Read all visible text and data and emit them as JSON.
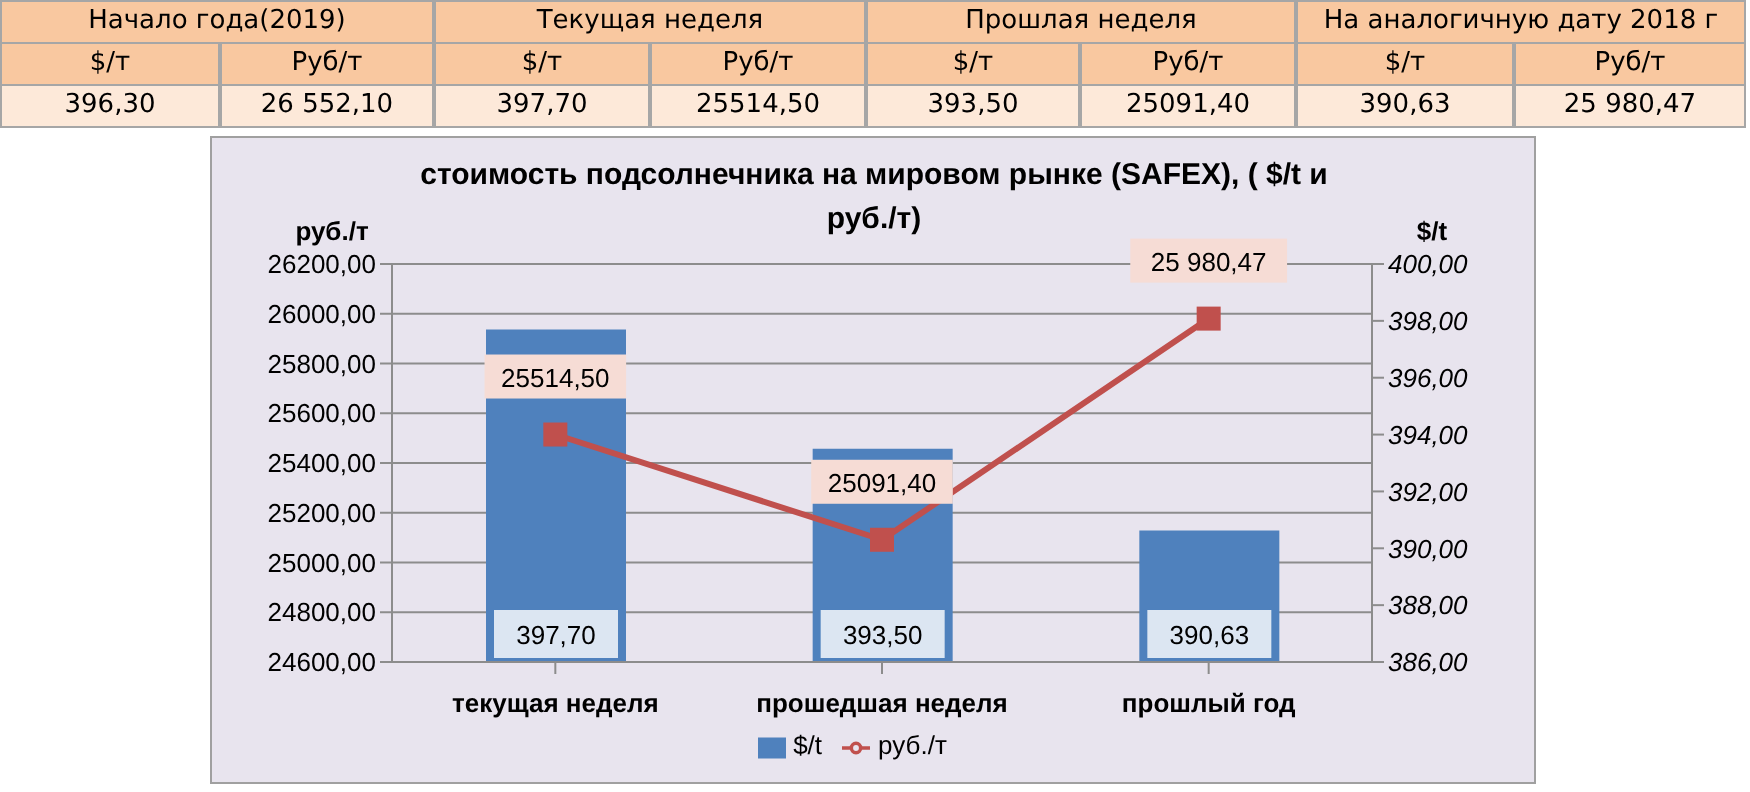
{
  "chart_data": {
    "type": "bar",
    "title": "стоимость подсолнечника на мировом рынке (SAFEX), ( $/t и руб./т)",
    "ylabel": "руб./т",
    "y2label": "$/t",
    "categories": [
      "текущая  неделя",
      "прошедшая неделя",
      "прошлый год"
    ],
    "series": [
      {
        "name": "$/t",
        "axis": "y2",
        "color": "#4f81bd",
        "values": [
          397.7,
          393.5,
          390.63
        ],
        "value_labels": [
          "397,70",
          "393,50",
          "390,63"
        ]
      },
      {
        "name": "руб./т",
        "type": "line",
        "axis": "y",
        "color": "#c0504d",
        "values": [
          25514.5,
          25091.4,
          25980.47
        ],
        "value_labels": [
          "25514,50",
          "25091,40",
          "25 980,47"
        ]
      }
    ],
    "ylim": [
      24600,
      26200
    ],
    "yticks": [
      {
        "value": 24600,
        "label": "24600,00"
      },
      {
        "value": 24800,
        "label": "24800,00"
      },
      {
        "value": 25000,
        "label": "25000,00"
      },
      {
        "value": 25200,
        "label": "25200,00"
      },
      {
        "value": 25400,
        "label": "25400,00"
      },
      {
        "value": 25600,
        "label": "25600,00"
      },
      {
        "value": 25800,
        "label": "25800,00"
      },
      {
        "value": 26000,
        "label": "26000,00"
      },
      {
        "value": 26200,
        "label": "26200,00"
      }
    ],
    "y2lim": [
      386,
      400
    ],
    "y2ticks": [
      {
        "value": 386,
        "label": "386,00"
      },
      {
        "value": 388,
        "label": "388,00"
      },
      {
        "value": 390,
        "label": "390,00"
      },
      {
        "value": 392,
        "label": "392,00"
      },
      {
        "value": 394,
        "label": "394,00"
      },
      {
        "value": 396,
        "label": "396,00"
      },
      {
        "value": 398,
        "label": "398,00"
      },
      {
        "value": 400,
        "label": "400,00"
      }
    ],
    "grid": "y",
    "legend": "bottom",
    "marker": "square",
    "annotations": [
      "Начало года(2019)",
      "Текущая неделя",
      "Прошлая неделя",
      "На аналогичную дату 2018 г",
      "$/т",
      "Руб/т",
      "$/т",
      "Руб/т",
      "$/т",
      "Руб/т",
      "$/т",
      "Руб/т",
      "396,30",
      "26 552,10",
      "397,70",
      "25514,50",
      "393,50",
      "25091,40",
      "390,63",
      "25 980,47"
    ]
  }
}
